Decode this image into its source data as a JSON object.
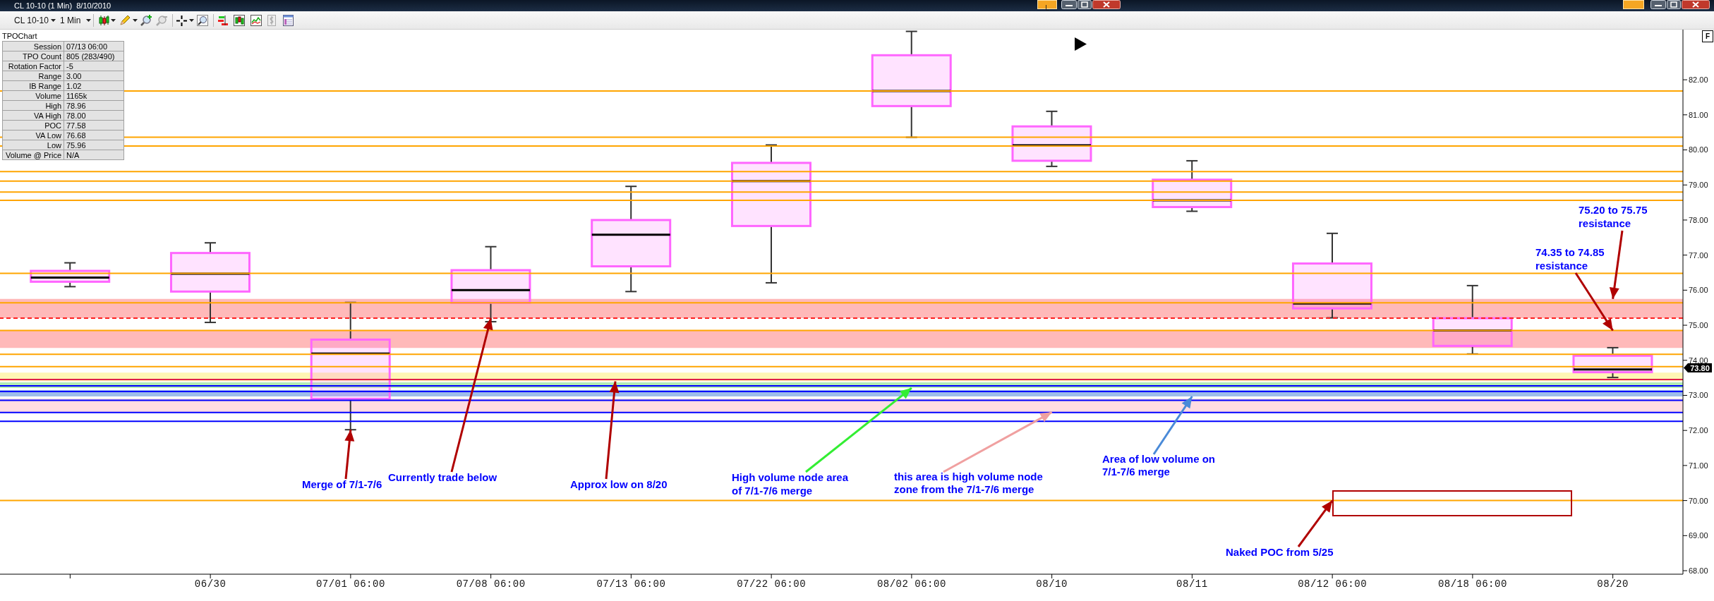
{
  "chart_data": {
    "type": "box",
    "title": "CL 10-10 (1 Min)  8/10/2010",
    "categories": [
      null,
      "06/30",
      "07/01 06:00",
      "07/08 06:00",
      "07/13 06:00",
      "07/22 06:00",
      "08/02 06:00",
      "08/10",
      "08/11",
      "08/12 06:00",
      "08/18 06:00",
      "08/20"
    ],
    "boxes": [
      {
        "low": 76.1,
        "q1": 76.24,
        "median": 76.36,
        "q3": 76.55,
        "high": 76.78
      },
      {
        "low": 75.08,
        "q1": 75.96,
        "median": 76.47,
        "q3": 77.06,
        "high": 77.35
      },
      {
        "low": 72.02,
        "q1": 72.9,
        "median": 74.19,
        "q3": 74.59,
        "high": 75.65
      },
      {
        "low": 75.1,
        "q1": 75.64,
        "median": 76.0,
        "q3": 76.57,
        "high": 77.24
      },
      {
        "low": 75.96,
        "q1": 76.68,
        "median": 77.58,
        "q3": 78.0,
        "high": 78.96
      },
      {
        "low": 76.21,
        "q1": 77.83,
        "median": 79.11,
        "q3": 79.63,
        "high": 80.14
      },
      {
        "low": 80.36,
        "q1": 81.25,
        "median": 81.68,
        "q3": 82.7,
        "high": 83.38
      },
      {
        "low": 79.53,
        "q1": 79.69,
        "median": 80.13,
        "q3": 80.67,
        "high": 81.1
      },
      {
        "low": 78.25,
        "q1": 78.37,
        "median": 78.56,
        "q3": 79.15,
        "high": 79.69
      },
      {
        "low": 75.21,
        "q1": 75.48,
        "median": 75.62,
        "q3": 76.76,
        "high": 77.62
      },
      {
        "low": 74.18,
        "q1": 74.41,
        "median": 74.85,
        "q3": 75.2,
        "high": 76.13
      },
      {
        "low": 73.51,
        "q1": 73.66,
        "median": 73.74,
        "q3": 74.13,
        "high": 74.36
      }
    ],
    "color": "#ff66ff",
    "ylim": [
      67.9,
      83.43
    ],
    "yticks": [
      {
        "value": 68,
        "label": "68.00"
      },
      {
        "value": 69,
        "label": "69.00"
      },
      {
        "value": 70,
        "label": "70.00"
      },
      {
        "value": 71,
        "label": "71.00"
      },
      {
        "value": 72,
        "label": "72.00"
      },
      {
        "value": 73,
        "label": "73.00"
      },
      {
        "value": 74,
        "label": "74.00"
      },
      {
        "value": 75,
        "label": "75.00"
      },
      {
        "value": 76,
        "label": "76.00"
      },
      {
        "value": 77,
        "label": "77.00"
      },
      {
        "value": 78,
        "label": "78.00"
      },
      {
        "value": 79,
        "label": "79.00"
      },
      {
        "value": 80,
        "label": "80.00"
      },
      {
        "value": 81,
        "label": "81.00"
      },
      {
        "value": 82,
        "label": "82.00"
      }
    ],
    "ref_lines": [
      {
        "axis": "y",
        "value": 81.68,
        "color": "#ffa500"
      },
      {
        "axis": "y",
        "value": 80.36,
        "color": "#ffa500"
      },
      {
        "axis": "y",
        "value": 80.11,
        "color": "#ffa500"
      },
      {
        "axis": "y",
        "value": 79.38,
        "color": "#ffa500"
      },
      {
        "axis": "y",
        "value": 79.11,
        "color": "#ffa500"
      },
      {
        "axis": "y",
        "value": 78.8,
        "color": "#ffa500"
      },
      {
        "axis": "y",
        "value": 78.56,
        "color": "#ffa500"
      },
      {
        "axis": "y",
        "value": 76.48,
        "color": "#ffa500"
      },
      {
        "axis": "y",
        "value": 75.64,
        "color": "#ffa500"
      },
      {
        "axis": "y",
        "value": 74.85,
        "color": "#ffa500"
      },
      {
        "axis": "y",
        "value": 74.17,
        "color": "#ffa500"
      },
      {
        "axis": "y",
        "value": 73.82,
        "color": "#ffa500"
      },
      {
        "axis": "y",
        "value": 70.0,
        "color": "#ffa500"
      },
      {
        "axis": "y",
        "value": 75.2,
        "color": "#ff2020",
        "line_style": "dashed"
      },
      {
        "axis": "y",
        "value": 73.45,
        "color": "#e0204a"
      },
      {
        "axis": "y",
        "value": 73.27,
        "color": "#0000ff"
      },
      {
        "axis": "y",
        "value": 73.11,
        "color": "#0000ff"
      },
      {
        "axis": "y",
        "value": 72.86,
        "color": "#0000ff"
      },
      {
        "axis": "y",
        "value": 72.51,
        "color": "#0000ff"
      },
      {
        "axis": "y",
        "value": 72.26,
        "color": "#0000ff"
      }
    ],
    "bands": [
      {
        "axis": "y",
        "from": 75.2,
        "to": 75.75,
        "color": "#ff8080"
      },
      {
        "axis": "y",
        "from": 74.35,
        "to": 74.85,
        "color": "#ff8080"
      },
      {
        "axis": "y",
        "from": 73.4,
        "to": 73.65,
        "color": "#ffee77"
      },
      {
        "axis": "y",
        "from": 73.21,
        "to": 73.37,
        "color": "#77e077"
      },
      {
        "axis": "y",
        "from": 72.97,
        "to": 73.15,
        "color": "#4f86d8"
      },
      {
        "axis": "y",
        "from": 72.52,
        "to": 72.91,
        "color": "#ffc0cb"
      }
    ],
    "annotations": [
      "TPOChart",
      "Session",
      "07/13 06:00",
      "TPO Count",
      "805 (283/490)",
      "Rotation Factor",
      "-5",
      "Range",
      "3.00",
      "IB Range",
      "1.02",
      "Volume",
      "1165k",
      "High",
      "78.96",
      "VA High",
      "78.00",
      "POC",
      "77.58",
      "VA Low",
      "76.68",
      "Low",
      "75.96",
      "Volume @ Price",
      "N/A",
      "CL 10-10",
      "1 Min",
      "L",
      "F",
      {
        "text": "Merge of 7/1-7/6",
        "x": "07/01 06:00",
        "y": 72.02
      },
      {
        "text": "Currently trade below",
        "x": "07/08 06:00",
        "y": 75.2
      },
      {
        "text": "Approx low on 8/20",
        "y": 73.4
      },
      {
        "text": "High volume node area\nof 7/1-7/6 merge",
        "x": "08/02 06:00",
        "y": 73.21
      },
      {
        "text": "this area is high volume node\nzone from the 7/1-7/6 merge",
        "x": "08/10",
        "y": 72.52
      },
      {
        "text": "Area of low volume on\n7/1-7/6 merge",
        "x": "08/11",
        "y": 72.97
      },
      {
        "text": "Naked POC from 5/25",
        "x": "08/12 06:00",
        "y": 70.0
      },
      {
        "text": "74.35 to 74.85\nresistance",
        "x": "08/20",
        "y": 74.85
      },
      {
        "text": "75.20 to 75.75\nresistance",
        "x": "08/20",
        "y": 75.75
      },
      "73.80"
    ]
  }
}
